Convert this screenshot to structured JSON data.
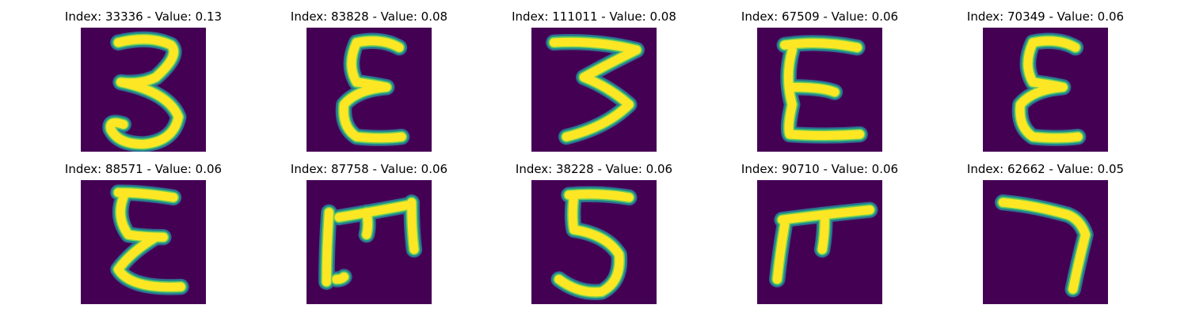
{
  "colors": {
    "background": "#440154",
    "halo_outer": "#31688e",
    "halo_mid": "#21918c",
    "halo_inner": "#6ece58",
    "stroke": "#fde725"
  },
  "tiles": [
    {
      "title": "Index: 33336 - Value: 0.13",
      "glyph": "3"
    },
    {
      "title": "Index: 83828 - Value: 0.08",
      "glyph": "epsilon"
    },
    {
      "title": "Index: 111011 - Value: 0.08",
      "glyph": "3-angular"
    },
    {
      "title": "Index: 67509 - Value: 0.06",
      "glyph": "E-rounded"
    },
    {
      "title": "Index: 70349 - Value: 0.06",
      "glyph": "epsilon"
    },
    {
      "title": "Index: 88571 - Value: 0.06",
      "glyph": "sigma-like"
    },
    {
      "title": "Index: 87758 - Value: 0.06",
      "glyph": "E-rotated"
    },
    {
      "title": "Index: 38228 - Value: 0.06",
      "glyph": "5"
    },
    {
      "title": "Index: 90710 - Value: 0.06",
      "glyph": "pi-like"
    },
    {
      "title": "Index: 62662 - Value: 0.05",
      "glyph": "7-like"
    }
  ]
}
